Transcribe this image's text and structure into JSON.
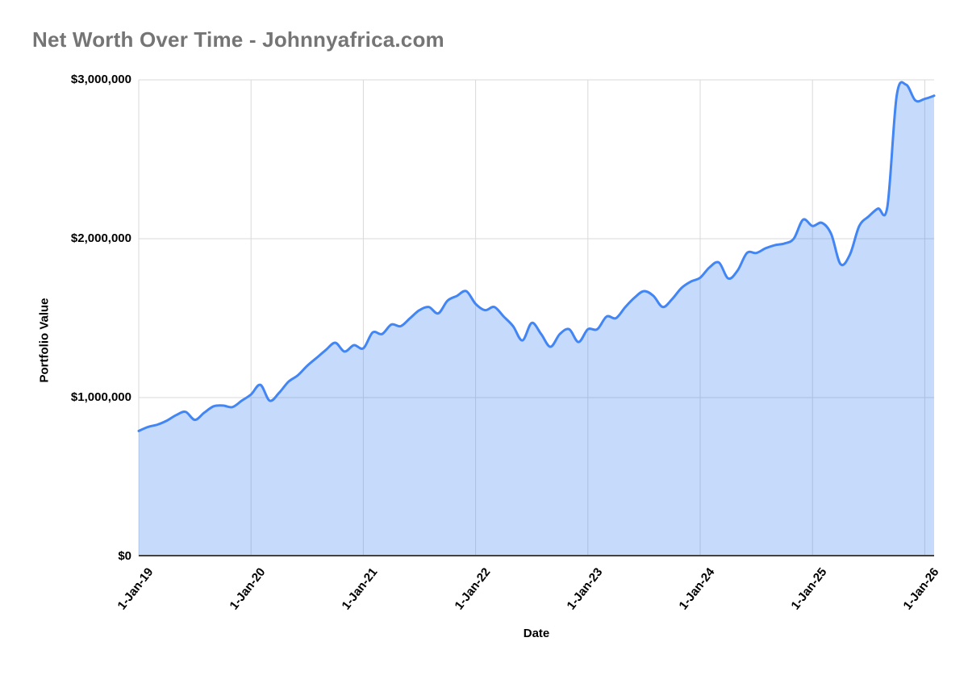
{
  "chart_data": {
    "type": "area",
    "title": "Net Worth Over Time - Johnnyafrica.com",
    "xlabel": "Date",
    "ylabel": "Portfolio Value",
    "ylim": [
      0,
      3000000
    ],
    "grid": true,
    "legend": false,
    "y_ticks": [
      {
        "label": "$0",
        "value": 0
      },
      {
        "label": "$1,000,000",
        "value": 1000000
      },
      {
        "label": "$2,000,000",
        "value": 2000000
      },
      {
        "label": "$3,000,000",
        "value": 3000000
      }
    ],
    "x_ticks": [
      {
        "label": "1-Jan-19",
        "month": 0
      },
      {
        "label": "1-Jan-20",
        "month": 12
      },
      {
        "label": "1-Jan-21",
        "month": 24
      },
      {
        "label": "1-Jan-22",
        "month": 36
      },
      {
        "label": "1-Jan-23",
        "month": 48
      },
      {
        "label": "1-Jan-24",
        "month": 60
      },
      {
        "label": "1-Jan-25",
        "month": 72
      },
      {
        "label": "1-Jan-26",
        "month": 84
      }
    ],
    "series": [
      {
        "name": "Portfolio Value",
        "x_start": "Jan-2019",
        "x_interval_months": 1,
        "values_usd": [
          790000,
          815000,
          830000,
          855000,
          890000,
          910000,
          860000,
          905000,
          945000,
          950000,
          940000,
          980000,
          1020000,
          1080000,
          980000,
          1030000,
          1100000,
          1140000,
          1200000,
          1250000,
          1300000,
          1345000,
          1290000,
          1330000,
          1310000,
          1410000,
          1400000,
          1460000,
          1450000,
          1500000,
          1550000,
          1570000,
          1530000,
          1610000,
          1640000,
          1670000,
          1590000,
          1550000,
          1570000,
          1510000,
          1450000,
          1360000,
          1470000,
          1400000,
          1320000,
          1400000,
          1430000,
          1350000,
          1430000,
          1430000,
          1510000,
          1500000,
          1570000,
          1630000,
          1670000,
          1640000,
          1570000,
          1620000,
          1690000,
          1730000,
          1755000,
          1820000,
          1850000,
          1750000,
          1800000,
          1910000,
          1910000,
          1940000,
          1960000,
          1970000,
          2000000,
          2120000,
          2080000,
          2100000,
          2030000,
          1840000,
          1900000,
          2080000,
          2140000,
          2190000,
          2200000,
          2900000,
          2970000,
          2870000,
          2880000,
          2900000
        ]
      }
    ],
    "colors": {
      "line": "#4285f4",
      "fill": "rgba(66,133,244,0.3)",
      "grid": "#d9d9d9",
      "axis_line": "#424242",
      "title_text": "#757575",
      "tick_text": "#000000",
      "background": "#ffffff"
    }
  }
}
